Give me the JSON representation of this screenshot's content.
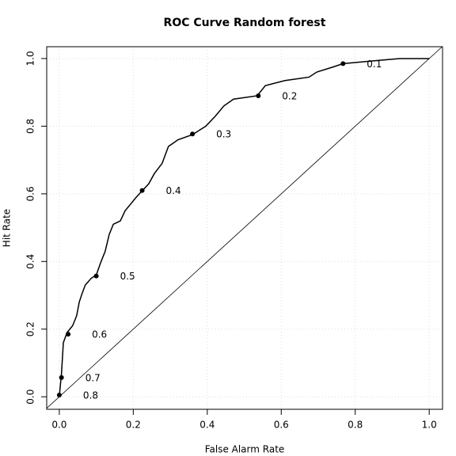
{
  "chart_data": {
    "type": "line",
    "title": "ROC Curve Random forest",
    "x_label": "False Alarm Rate",
    "y_label": "Hit Rate",
    "color": "#000000",
    "grid": true,
    "xlim": [
      -0.034,
      1.036
    ],
    "ylim": [
      -0.037,
      1.035
    ],
    "xticks": [
      {
        "value": 0,
        "label": "0.0"
      },
      {
        "value": 0.2,
        "label": "0.2"
      },
      {
        "value": 0.4,
        "label": "0.4"
      },
      {
        "value": 0.6,
        "label": "0.6"
      },
      {
        "value": 0.8,
        "label": "0.8"
      },
      {
        "value": 1,
        "label": "1.0"
      }
    ],
    "yticks": [
      {
        "value": 0,
        "label": "0.0"
      },
      {
        "value": 0.2,
        "label": "0.2"
      },
      {
        "value": 0.4,
        "label": "0.4"
      },
      {
        "value": 0.6,
        "label": "0.6"
      },
      {
        "value": 0.8,
        "label": "0.8"
      },
      {
        "value": 1,
        "label": "1.0"
      }
    ],
    "x": [
      0,
      0.006,
      0.011,
      0.021,
      0.036,
      0.047,
      0.054,
      0.06,
      0.07,
      0.086,
      0.1,
      0.113,
      0.124,
      0.135,
      0.146,
      0.165,
      0.178,
      0.193,
      0.208,
      0.225,
      0.242,
      0.257,
      0.278,
      0.295,
      0.321,
      0.36,
      0.396,
      0.422,
      0.445,
      0.471,
      0.535,
      0.557,
      0.61,
      0.675,
      0.696,
      0.74,
      0.767,
      0.867,
      0.92,
      1.0
    ],
    "values": [
      0,
      0.07,
      0.16,
      0.19,
      0.21,
      0.24,
      0.28,
      0.3,
      0.33,
      0.35,
      0.36,
      0.4,
      0.43,
      0.48,
      0.51,
      0.52,
      0.55,
      0.57,
      0.59,
      0.61,
      0.63,
      0.66,
      0.69,
      0.74,
      0.76,
      0.775,
      0.8,
      0.83,
      0.86,
      0.88,
      0.89,
      0.92,
      0.935,
      0.945,
      0.96,
      0.975,
      0.985,
      0.995,
      1.0,
      1.0
    ],
    "threshold_x": [
      0.0,
      0.006,
      0.024,
      0.1,
      0.224,
      0.36,
      0.538,
      0.767
    ],
    "threshold_y": [
      0.005,
      0.057,
      0.185,
      0.357,
      0.61,
      0.777,
      0.89,
      0.985
    ],
    "thresholds": [
      0.8,
      0.7,
      0.6,
      0.5,
      0.4,
      0.3,
      0.2,
      0.1
    ]
  }
}
